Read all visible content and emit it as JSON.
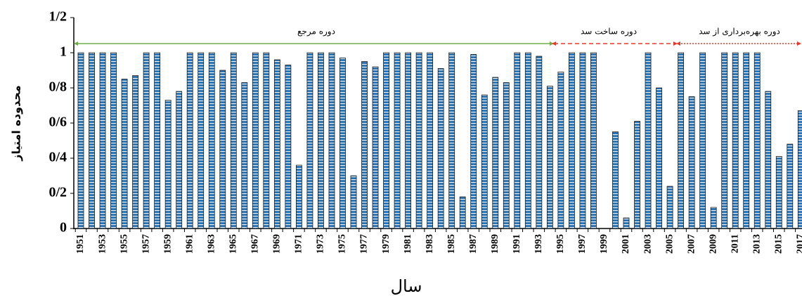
{
  "chart_data": {
    "type": "bar",
    "y_label": "محدوده امتیاز",
    "x_label": "سال",
    "categories": [
      "1951",
      null,
      "1953",
      null,
      "1955",
      null,
      "1957",
      null,
      "1959",
      null,
      "1961",
      null,
      "1963",
      null,
      "1965",
      null,
      "1967",
      null,
      "1969",
      null,
      "1971",
      null,
      "1973",
      null,
      "1975",
      null,
      "1977",
      null,
      "1979",
      null,
      "1981",
      null,
      "1983",
      null,
      "1985",
      null,
      "1987",
      null,
      "1989",
      null,
      "1991",
      null,
      "1993",
      null,
      "1995",
      null,
      "1997",
      null,
      "1999",
      null,
      "2001",
      null,
      "2003",
      null,
      "2005",
      null,
      "2007",
      null,
      "2009",
      null,
      "2011",
      null,
      "2013",
      null,
      "2015",
      null,
      "2017"
    ],
    "values": [
      1,
      1,
      1,
      1,
      0.85,
      0.87,
      1,
      1,
      0.73,
      0.78,
      1,
      1,
      1,
      0.9,
      1,
      0.83,
      1,
      1,
      0.96,
      0.93,
      0.36,
      1,
      1,
      1,
      0.97,
      0.3,
      0.95,
      0.92,
      1,
      1,
      1,
      1,
      1,
      0.91,
      1,
      0.18,
      0.99,
      0.76,
      0.86,
      0.83,
      1,
      1,
      0.98,
      0.81,
      0.89,
      1,
      1,
      1,
      0,
      0.55,
      0.06,
      0.61,
      1,
      0.8,
      0.24,
      1,
      0.75,
      1,
      0.12,
      1,
      1,
      1,
      1,
      0.78,
      0.41,
      0.48,
      0.67
    ],
    "color": "#2e75b6",
    "ylim": [
      0,
      1.2
    ],
    "yticks": [
      0,
      {
        "value": 0.2,
        "label": "0/2"
      },
      {
        "value": 0.4,
        "label": "0/4"
      },
      {
        "value": 0.6,
        "label": "0/6"
      },
      {
        "value": 0.8,
        "label": "0/8"
      },
      1,
      {
        "value": 1.2,
        "label": "1/2"
      }
    ],
    "grid": false,
    "annotations": [
      {
        "text": "دوره مرجع",
        "color": "#70ad47"
      },
      {
        "text": "دوره ساخت سد",
        "color": "#e8392a"
      },
      {
        "text": "دوره بهره‌برداری  از سد",
        "color": "#e8392a"
      }
    ]
  }
}
